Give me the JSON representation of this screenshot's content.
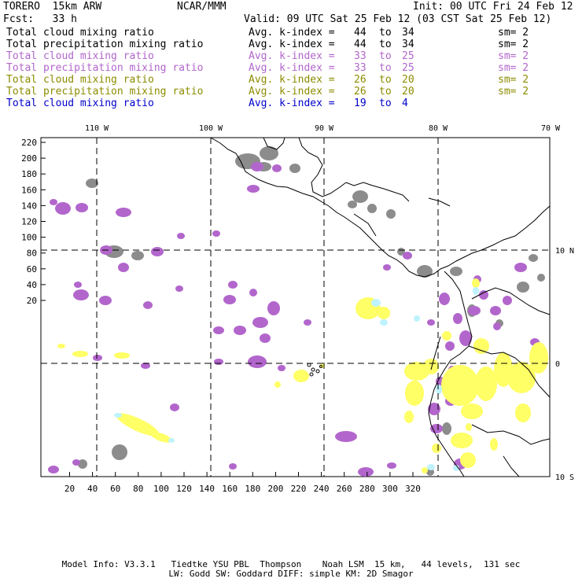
{
  "header": {
    "model": "TORERO  15km ARW",
    "org": "NCAR/MMM",
    "init": "Init: 00 UTC Fri 24 Feb 12",
    "fcst": "Fcst:   33 h",
    "valid": "Valid: 09 UTC Sat 25 Feb 12 (03 CST Sat 25 Feb 12)"
  },
  "legend": [
    {
      "variable": "Total cloud mixing ratio",
      "avg": "Avg. k-index =",
      "from": "44",
      "to": "to",
      "end": "34",
      "sm": "sm= 2",
      "color": "#000000"
    },
    {
      "variable": "Total precipitation mixing ratio",
      "avg": "Avg. k-index =",
      "from": "44",
      "to": "to",
      "end": "34",
      "sm": "sm= 2",
      "color": "#000000"
    },
    {
      "variable": "Total cloud mixing ratio",
      "avg": "Avg. k-index =",
      "from": "33",
      "to": "to",
      "end": "25",
      "sm": "sm= 2",
      "color": "#b266cc"
    },
    {
      "variable": "Total precipitation mixing ratio",
      "avg": "Avg. k-index =",
      "from": "33",
      "to": "to",
      "end": "25",
      "sm": "sm= 2",
      "color": "#b266cc"
    },
    {
      "variable": "Total cloud mixing ratio",
      "avg": "Avg. k-index =",
      "from": "26",
      "to": "to",
      "end": "20",
      "sm": "sm= 2",
      "color": "#8c8c00"
    },
    {
      "variable": "Total precipitation mixing ratio",
      "avg": "Avg. k-index =",
      "from": "26",
      "to": "to",
      "end": "20",
      "sm": "sm= 2",
      "color": "#8c8c00"
    },
    {
      "variable": "Total cloud mixing ratio",
      "avg": "Avg. k-index =",
      "from": "19",
      "to": "to",
      "end": "4",
      "sm": "",
      "color": "#0000cc"
    }
  ],
  "map": {
    "top_longitude_labels": [
      "110 W",
      "100 W",
      "90 W",
      "80 W",
      "70 W"
    ],
    "right_latitude_labels": [
      "10 N",
      "0",
      "10 S"
    ],
    "left_ticks": [
      "220",
      "200",
      "180",
      "160",
      "140",
      "120",
      "100",
      "80",
      "60",
      "40",
      "20"
    ],
    "bottom_ticks": [
      "20",
      "40",
      "60",
      "80",
      "100",
      "120",
      "140",
      "160",
      "180",
      "200",
      "220",
      "240",
      "260",
      "280",
      "300",
      "320"
    ],
    "colors": {
      "gray_cloud": "#8c8c8c",
      "purple_cloud": "#b266cc",
      "yellow_cloud": "#ffff66",
      "cyan_cloud": "#bff2ff",
      "coast": "#000000"
    }
  },
  "footer": {
    "line1": "Model Info: V3.3.1   Tiedtke YSU PBL  Thompson    Noah LSM  15 km,   44 levels,  131 sec",
    "line2": "LW: Godd SW: Goddard DIFF: simple KM: 2D Smagor"
  }
}
